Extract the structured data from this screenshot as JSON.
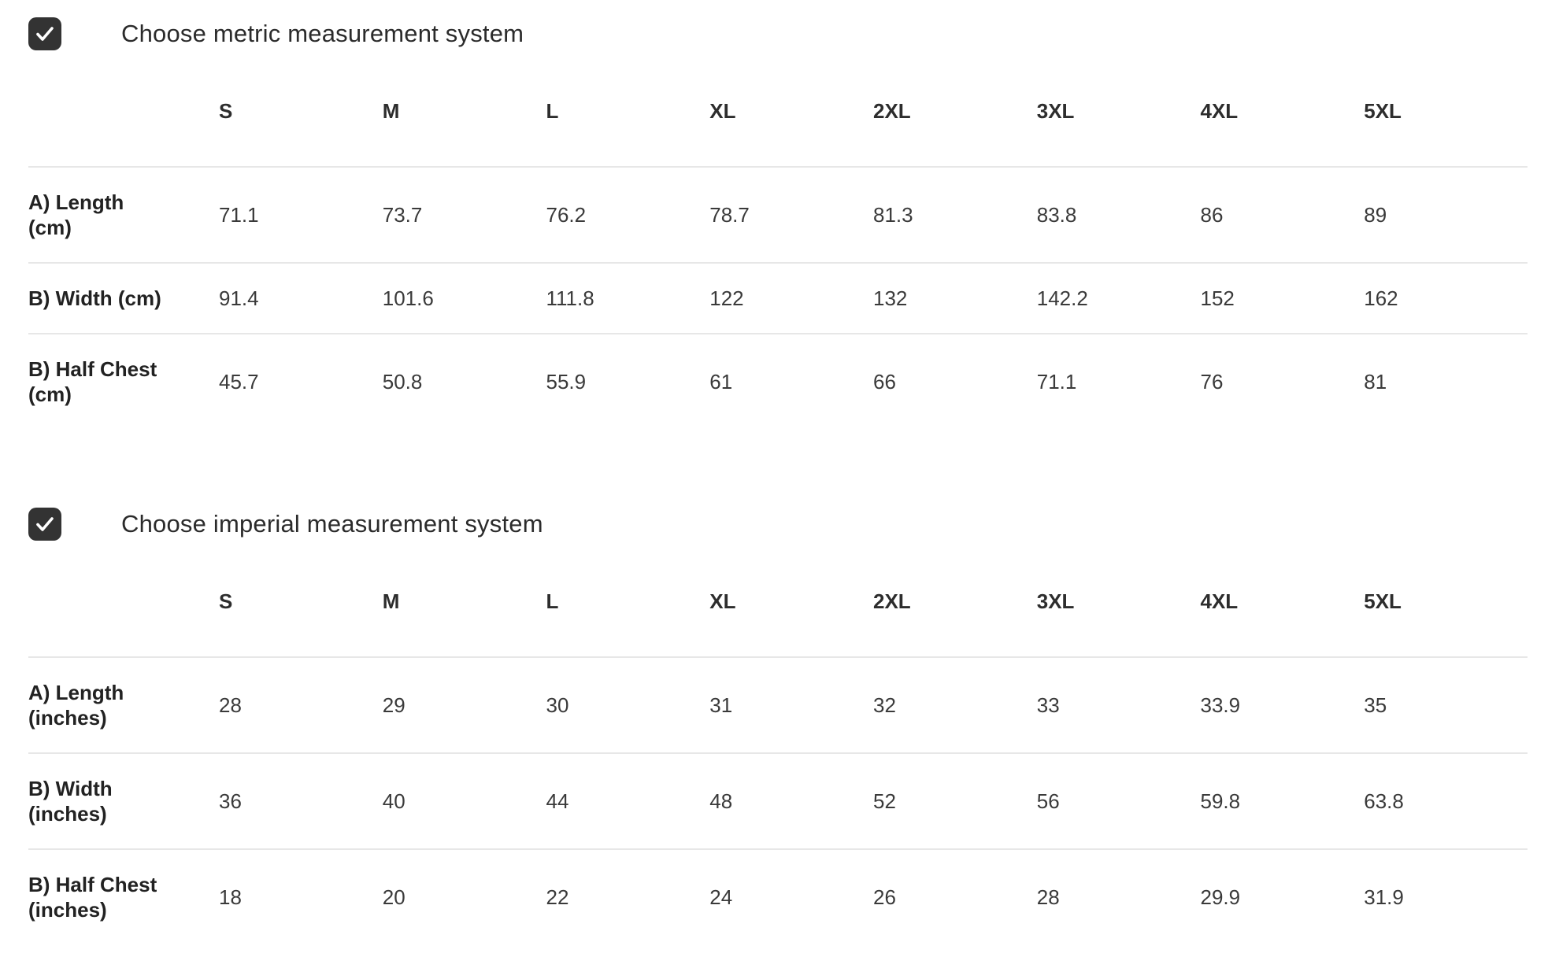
{
  "colors": {
    "checkbox_bg": "#333333",
    "checkbox_check": "#ffffff",
    "divider": "#e7e7e7",
    "label_text": "#222222",
    "value_text": "#3a3a3a"
  },
  "sections": [
    {
      "id": "metric",
      "checkbox": {
        "checked": true,
        "label": "Choose metric measurement system"
      },
      "table": {
        "columns": [
          "S",
          "M",
          "L",
          "XL",
          "2XL",
          "3XL",
          "4XL",
          "5XL"
        ],
        "rows": [
          {
            "label_lines": [
              "A) Length",
              "(cm)"
            ],
            "values": [
              "71.1",
              "73.7",
              "76.2",
              "78.7",
              "81.3",
              "83.8",
              "86",
              "89"
            ]
          },
          {
            "label_lines": [
              "B) Width (cm)"
            ],
            "values": [
              "91.4",
              "101.6",
              "111.8",
              "122",
              "132",
              "142.2",
              "152",
              "162"
            ]
          },
          {
            "label_lines": [
              "B) Half Chest",
              "(cm)"
            ],
            "values": [
              "45.7",
              "50.8",
              "55.9",
              "61",
              "66",
              "71.1",
              "76",
              "81"
            ]
          }
        ]
      }
    },
    {
      "id": "imperial",
      "checkbox": {
        "checked": true,
        "label": "Choose imperial measurement system"
      },
      "table": {
        "columns": [
          "S",
          "M",
          "L",
          "XL",
          "2XL",
          "3XL",
          "4XL",
          "5XL"
        ],
        "rows": [
          {
            "label_lines": [
              "A) Length",
              "(inches)"
            ],
            "values": [
              "28",
              "29",
              "30",
              "31",
              "32",
              "33",
              "33.9",
              "35"
            ]
          },
          {
            "label_lines": [
              "B) Width",
              "(inches)"
            ],
            "values": [
              "36",
              "40",
              "44",
              "48",
              "52",
              "56",
              "59.8",
              "63.8"
            ]
          },
          {
            "label_lines": [
              "B) Half Chest",
              "(inches)"
            ],
            "values": [
              "18",
              "20",
              "22",
              "24",
              "26",
              "28",
              "29.9",
              "31.9"
            ]
          }
        ]
      }
    }
  ]
}
